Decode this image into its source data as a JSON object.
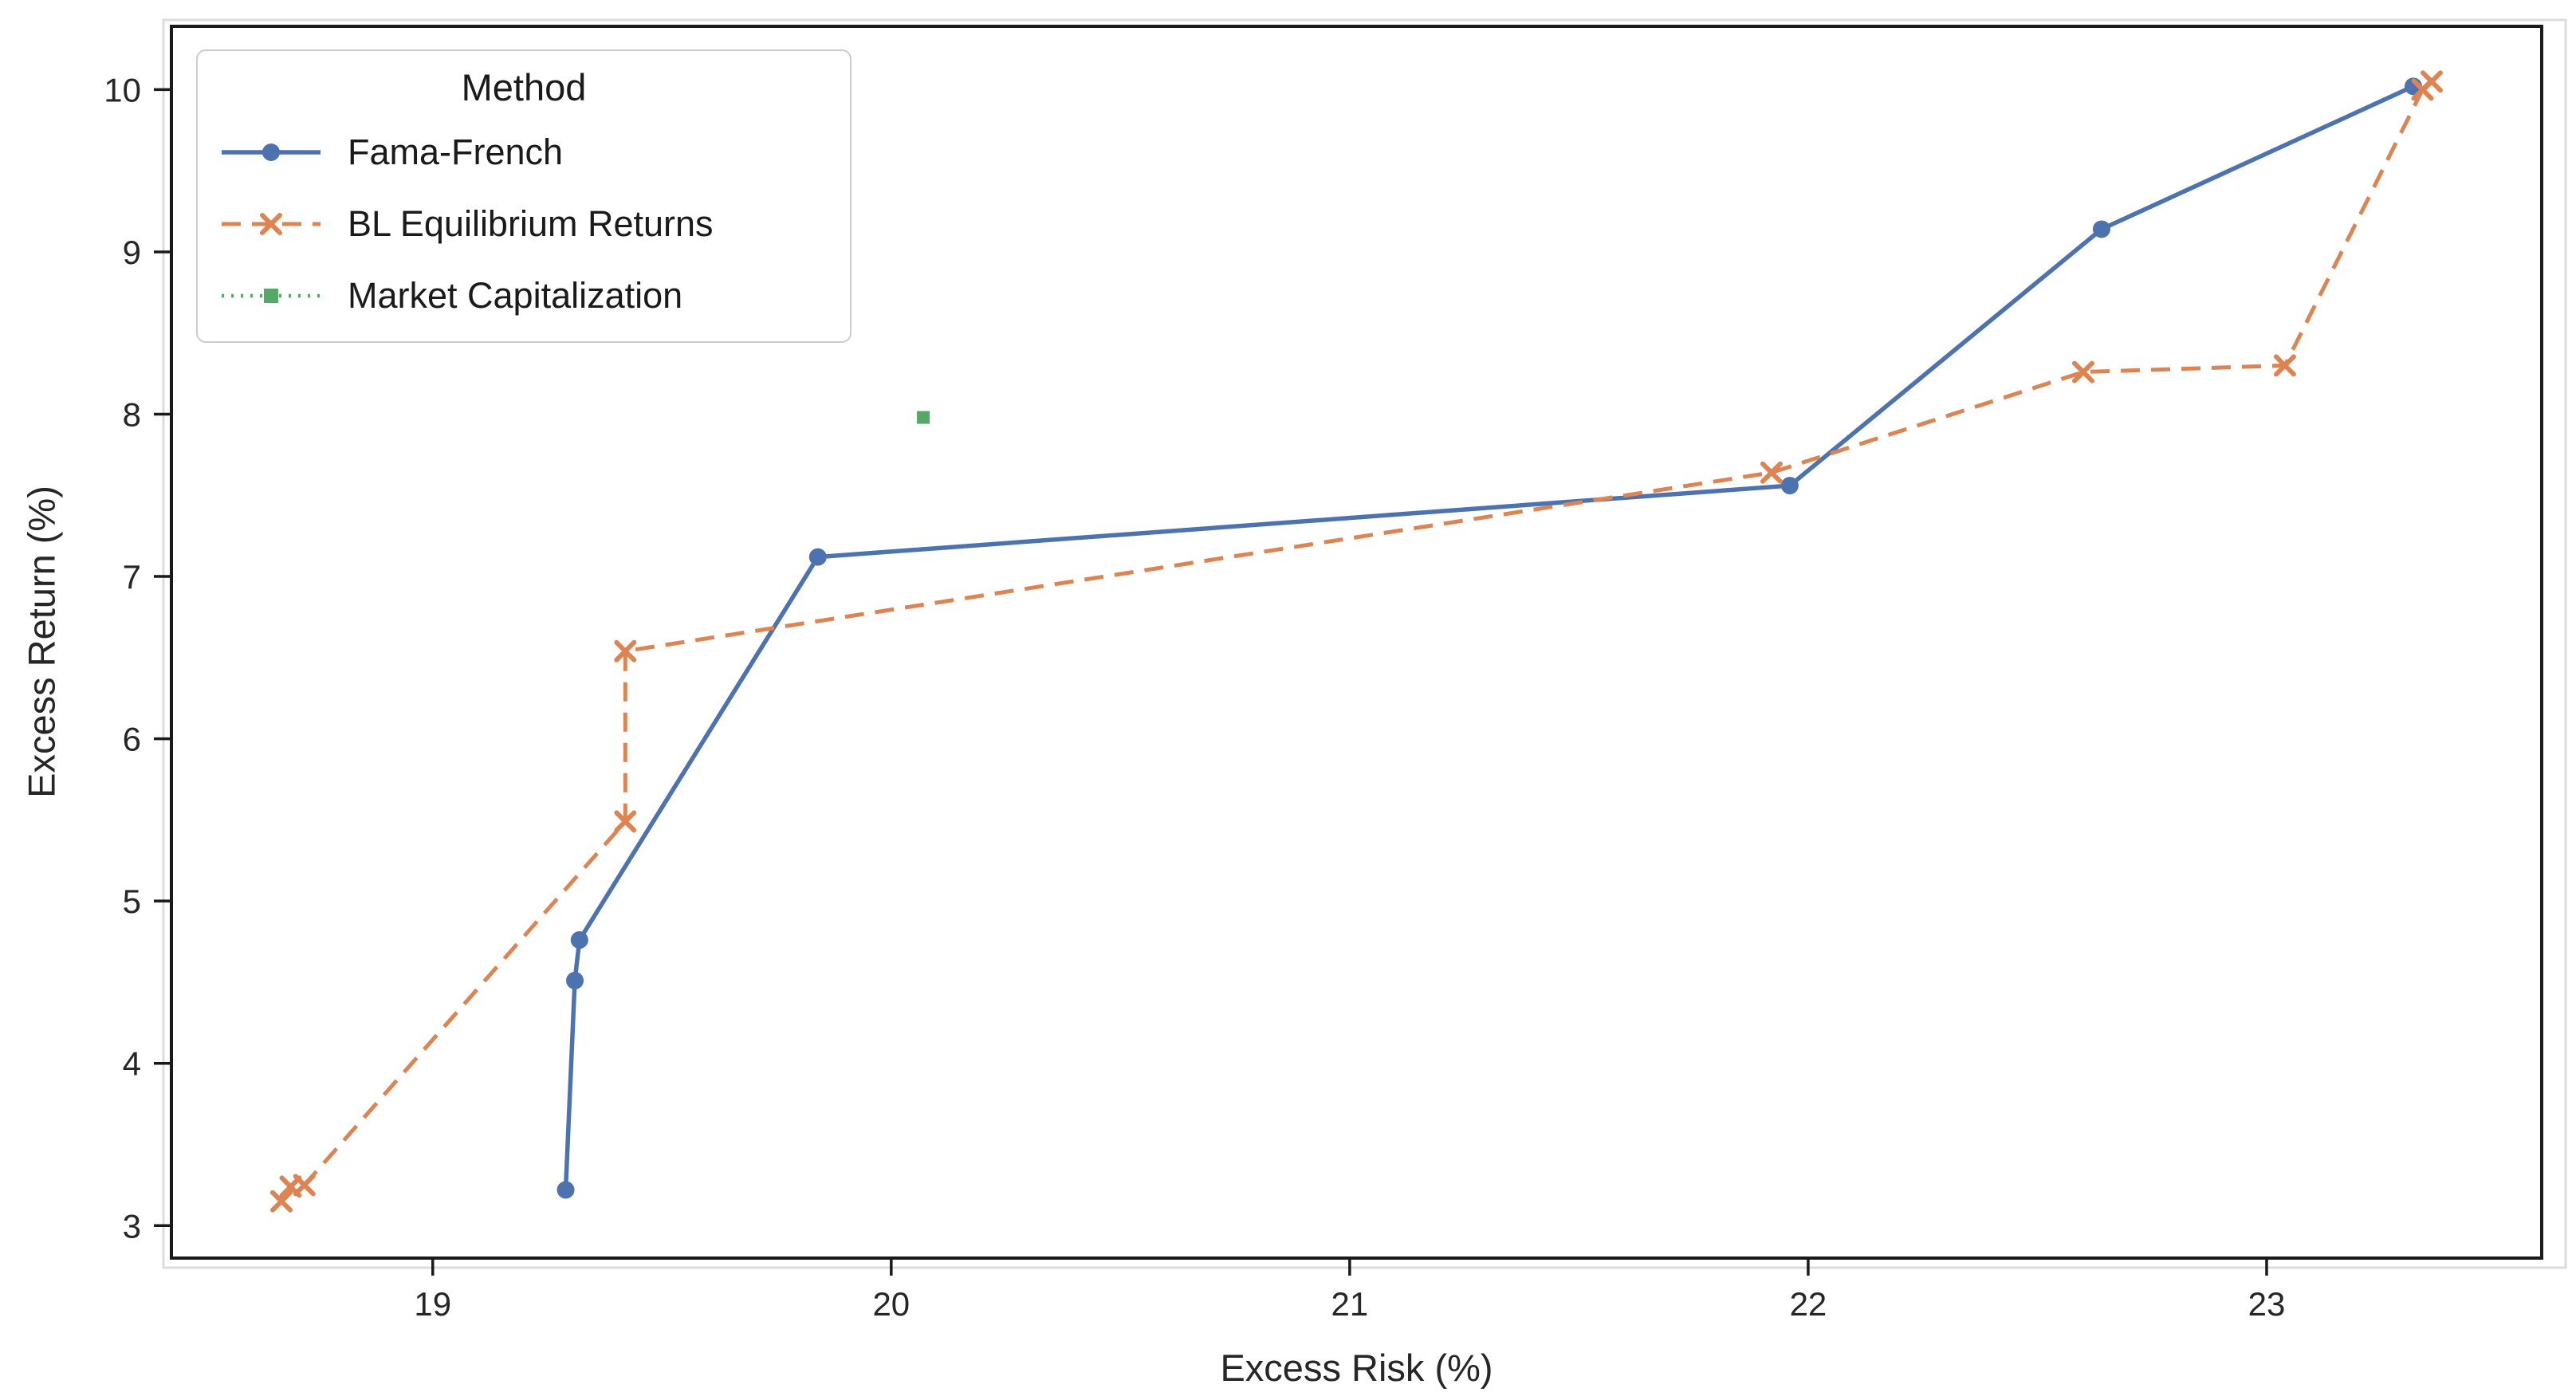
{
  "chart_data": {
    "type": "line",
    "title": "",
    "xlabel": "Excess Risk (%)",
    "ylabel": "Excess Return (%)",
    "xlim": [
      18.43,
      23.6
    ],
    "ylim": [
      2.8,
      10.39
    ],
    "xticks": [
      19,
      20,
      21,
      22,
      23
    ],
    "yticks": [
      3,
      4,
      5,
      6,
      7,
      8,
      9,
      10
    ],
    "grid": false,
    "text_color": "#262626",
    "spine_color": "#1a1a1a",
    "legend": {
      "title": "Method",
      "position": "upper left"
    },
    "series": [
      {
        "name": "Fama-French",
        "color": "#4C72B0",
        "line_style": "solid",
        "marker": "circle",
        "points": [
          [
            19.29,
            3.22
          ],
          [
            19.31,
            4.51
          ],
          [
            19.32,
            4.76
          ],
          [
            19.84,
            7.12
          ],
          [
            21.96,
            7.56
          ],
          [
            22.64,
            9.14
          ],
          [
            23.32,
            10.02
          ]
        ]
      },
      {
        "name": "BL Equilibrium Returns",
        "color": "#DD8452",
        "line_style": "dashed",
        "marker": "x",
        "points": [
          [
            18.67,
            3.15
          ],
          [
            18.69,
            3.24
          ],
          [
            18.72,
            3.25
          ],
          [
            19.42,
            5.49
          ],
          [
            19.42,
            6.54
          ],
          [
            21.92,
            7.64
          ],
          [
            22.6,
            8.26
          ],
          [
            23.04,
            8.3
          ],
          [
            23.34,
            10.0
          ],
          [
            23.36,
            10.05
          ]
        ]
      },
      {
        "name": "Market Capitalization",
        "color": "#55A868",
        "line_style": "dotted",
        "marker": "square",
        "points": [
          [
            20.07,
            7.98
          ]
        ]
      }
    ]
  }
}
